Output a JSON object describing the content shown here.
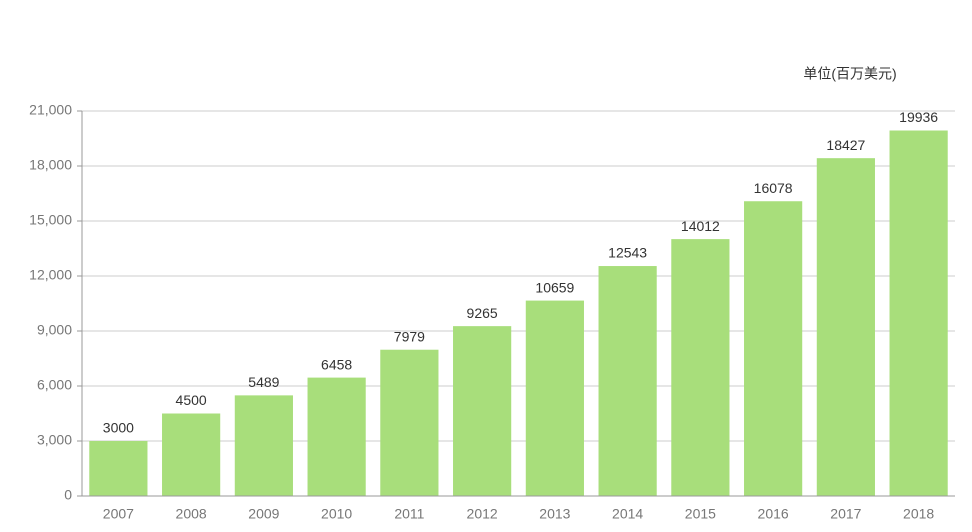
{
  "chart_data": {
    "type": "bar",
    "unit_label": "单位(百万美元)",
    "categories": [
      "2007",
      "2008",
      "2009",
      "2010",
      "2011",
      "2012",
      "2013",
      "2014",
      "2015",
      "2016",
      "2017",
      "2018"
    ],
    "values": [
      3000,
      4500,
      5489,
      6458,
      7979,
      9265,
      10659,
      12543,
      14012,
      16078,
      18427,
      19936
    ],
    "color": "#a8de7b",
    "ylim": [
      0,
      21000
    ],
    "yticks": [
      0,
      {
        "value": 3000,
        "label": "3,000"
      },
      {
        "value": 6000,
        "label": "6,000"
      },
      {
        "value": 9000,
        "label": "9,000"
      },
      {
        "value": 12000,
        "label": "12,000"
      },
      {
        "value": 15000,
        "label": "15,000"
      },
      {
        "value": 18000,
        "label": "18,000"
      },
      {
        "value": 21000,
        "label": "21,000"
      }
    ],
    "grid": true
  }
}
